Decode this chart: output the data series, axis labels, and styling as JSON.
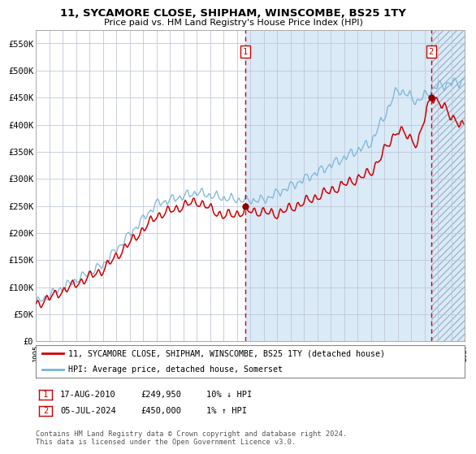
{
  "title": "11, SYCAMORE CLOSE, SHIPHAM, WINSCOMBE, BS25 1TY",
  "subtitle": "Price paid vs. HM Land Registry's House Price Index (HPI)",
  "legend_line1": "11, SYCAMORE CLOSE, SHIPHAM, WINSCOMBE, BS25 1TY (detached house)",
  "legend_line2": "HPI: Average price, detached house, Somerset",
  "annotation1_date": "17-AUG-2010",
  "annotation1_price": "£249,950",
  "annotation1_hpi": "10% ↓ HPI",
  "annotation2_date": "05-JUL-2024",
  "annotation2_price": "£450,000",
  "annotation2_hpi": "1% ↑ HPI",
  "footnote": "Contains HM Land Registry data © Crown copyright and database right 2024.\nThis data is licensed under the Open Government Licence v3.0.",
  "hpi_color": "#7ab3d8",
  "price_color": "#cc0000",
  "marker_color": "#8b0000",
  "point1_x": 2010.625,
  "point1_y": 249950,
  "point2_x": 2024.5,
  "point2_y": 450000,
  "shade_start": 2010.625,
  "shade_end": 2024.5,
  "hatch_start": 2024.5,
  "hatch_end": 2027.0,
  "ylim": [
    0,
    575000
  ],
  "xlim_start": 1995.0,
  "xlim_end": 2027.0,
  "yticks": [
    0,
    50000,
    100000,
    150000,
    200000,
    250000,
    300000,
    350000,
    400000,
    450000,
    500000,
    550000
  ],
  "ytick_labels": [
    "£0",
    "£50K",
    "£100K",
    "£150K",
    "£200K",
    "£250K",
    "£300K",
    "£350K",
    "£400K",
    "£450K",
    "£500K",
    "£550K"
  ],
  "xticks": [
    1995,
    1996,
    1997,
    1998,
    1999,
    2000,
    2001,
    2002,
    2003,
    2004,
    2005,
    2006,
    2007,
    2008,
    2009,
    2010,
    2011,
    2012,
    2013,
    2014,
    2015,
    2016,
    2017,
    2018,
    2019,
    2020,
    2021,
    2022,
    2023,
    2024,
    2025,
    2026,
    2027
  ],
  "background_color": "#ffffff",
  "plot_bg_color": "#ffffff",
  "grid_color": "#c0c8d8"
}
